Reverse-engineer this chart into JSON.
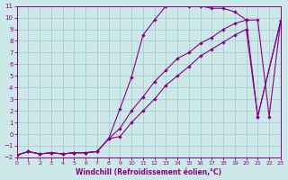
{
  "xlabel": "Windchill (Refroidissement éolien,°C)",
  "bg_color": "#cce8e8",
  "grid_color": "#aacccc",
  "line_color": "#880088",
  "xlim": [
    0,
    23
  ],
  "ylim": [
    -2,
    11
  ],
  "xticks": [
    0,
    1,
    2,
    3,
    4,
    5,
    6,
    7,
    8,
    9,
    10,
    11,
    12,
    13,
    14,
    15,
    16,
    17,
    18,
    19,
    20,
    21,
    22,
    23
  ],
  "yticks": [
    -2,
    -1,
    0,
    1,
    2,
    3,
    4,
    5,
    6,
    7,
    8,
    9,
    10,
    11
  ],
  "curve1_x": [
    0,
    1,
    2,
    3,
    4,
    5,
    6,
    7,
    8,
    9,
    10,
    11,
    12,
    13,
    14,
    15,
    16,
    17,
    18,
    19,
    20,
    21,
    22,
    23
  ],
  "curve1_y": [
    -1.8,
    -1.5,
    -1.7,
    -1.6,
    -1.7,
    -1.6,
    -1.6,
    -1.5,
    -0.4,
    2.2,
    4.9,
    8.5,
    9.8,
    11.0,
    11.1,
    11.0,
    11.0,
    10.8,
    10.8,
    10.5,
    9.8,
    9.8,
    1.5,
    9.7
  ],
  "curve2_x": [
    0,
    1,
    2,
    3,
    4,
    5,
    6,
    7,
    8,
    9,
    10,
    11,
    12,
    13,
    14,
    15,
    16,
    17,
    18,
    19,
    20,
    21,
    23
  ],
  "curve2_y": [
    -1.8,
    -1.5,
    -1.7,
    -1.6,
    -1.7,
    -1.6,
    -1.6,
    -1.5,
    -0.4,
    0.5,
    2.0,
    3.2,
    4.5,
    5.5,
    6.5,
    7.0,
    7.8,
    8.3,
    9.0,
    9.5,
    9.8,
    1.5,
    9.7
  ],
  "curve3_x": [
    0,
    1,
    2,
    3,
    4,
    5,
    6,
    7,
    8,
    9,
    10,
    11,
    12,
    13,
    14,
    15,
    16,
    17,
    18,
    19,
    20,
    21,
    23
  ],
  "curve3_y": [
    -1.8,
    -1.5,
    -1.7,
    -1.6,
    -1.7,
    -1.6,
    -1.6,
    -1.5,
    -0.4,
    -0.2,
    1.0,
    2.0,
    3.0,
    4.2,
    5.0,
    5.8,
    6.7,
    7.3,
    7.9,
    8.5,
    9.0,
    1.5,
    9.7
  ]
}
